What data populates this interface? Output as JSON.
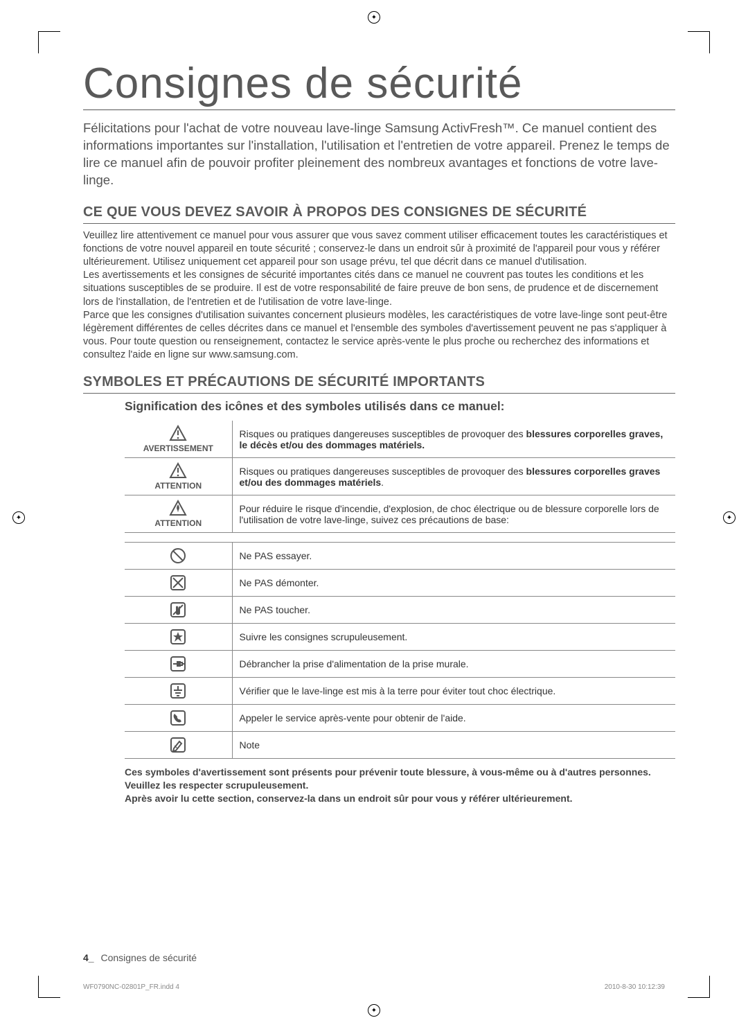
{
  "title": "Consignes de sécurité",
  "intro": "Félicitations pour l'achat de votre nouveau lave-linge Samsung ActivFresh™. Ce manuel contient des informations importantes sur l'installation, l'utilisation et l'entretien de votre appareil. Prenez le temps de lire ce manuel afin de pouvoir profiter pleinement des nombreux avantages et fonctions de votre lave-linge.",
  "section1": {
    "heading": "CE QUE VOUS DEVEZ SAVOIR À PROPOS DES CONSIGNES DE SÉCURITÉ",
    "body": "Veuillez lire attentivement ce manuel pour vous assurer que vous savez comment utiliser efficacement toutes les caractéristiques et fonctions de votre nouvel appareil en toute sécurité ; conservez-le dans un endroit sûr à proximité de l'appareil pour vous y référer ultérieurement. Utilisez uniquement cet appareil pour son usage prévu, tel que décrit dans ce manuel d'utilisation.\nLes avertissements et les consignes de sécurité importantes cités dans ce manuel ne couvrent pas toutes les conditions et les situations susceptibles de se produire. Il est de votre responsabilité de faire preuve de bon sens, de prudence et de discernement lors de l'installation, de l'entretien et de l'utilisation de votre lave-linge.\nParce que les consignes d'utilisation suivantes concernent plusieurs modèles, les caractéristiques de votre lave-linge sont peut-être légèrement différentes de celles décrites dans ce manuel et l'ensemble des symboles d'avertissement peuvent ne pas s'appliquer à vous. Pour toute question ou renseignement, contactez le service après-vente le plus proche ou recherchez des informations et consultez l'aide en ligne sur www.samsung.com."
  },
  "section2": {
    "heading": "SYMBOLES ET PRÉCAUTIONS DE SÉCURITÉ IMPORTANTS",
    "subhead": "Signification des icônes et des symboles utilisés dans ce manuel:"
  },
  "warn_rows": [
    {
      "label": "AVERTISSEMENT",
      "icon": "warn-triangle",
      "text_pre": "Risques ou pratiques dangereuses susceptibles de provoquer des ",
      "text_b": "blessures corporelles graves, le décès et/ou des dommages matériels."
    },
    {
      "label": "ATTENTION",
      "icon": "warn-triangle",
      "text_pre": "Risques ou pratiques dangereuses susceptibles de provoquer des ",
      "text_b": "blessures corporelles graves et/ou des dommages matériels",
      "text_post": "."
    },
    {
      "label": "ATTENTION",
      "icon": "fire-triangle",
      "text": "Pour réduire le risque d'incendie, d'explosion, de choc électrique ou de blessure corporelle lors de l'utilisation de votre lave-linge, suivez ces précautions de base:"
    }
  ],
  "action_rows": [
    {
      "icon": "no-circle",
      "text": "Ne PAS essayer."
    },
    {
      "icon": "no-disassemble",
      "text": "Ne PAS démonter."
    },
    {
      "icon": "no-touch",
      "text": "Ne PAS toucher."
    },
    {
      "icon": "star-box",
      "text": "Suivre les consignes scrupuleusement."
    },
    {
      "icon": "unplug-box",
      "text": "Débrancher la prise d'alimentation de la prise murale."
    },
    {
      "icon": "ground-box",
      "text": "Vérifier que le lave-linge est mis à la terre pour éviter tout choc électrique."
    },
    {
      "icon": "phone-box",
      "text": "Appeler le service après-vente pour obtenir de l'aide."
    },
    {
      "icon": "note-box",
      "text": "Note"
    }
  ],
  "footnote": "Ces symboles d'avertissement sont présents pour prévenir toute blessure, à vous-même ou à d'autres personnes.\nVeuillez les respecter scrupuleusement.\nAprès avoir lu cette section, conservez-la dans un endroit sûr pour vous y référer ultérieurement.",
  "pagefoot_num": "4_",
  "pagefoot_txt": "Consignes de sécurité",
  "runfoot_left": "WF0790NC-02801P_FR.indd   4",
  "runfoot_right": "2010-8-30   10:12:39",
  "colors": {
    "heading": "#5a5a5a",
    "text": "#444444",
    "border": "#888888"
  }
}
